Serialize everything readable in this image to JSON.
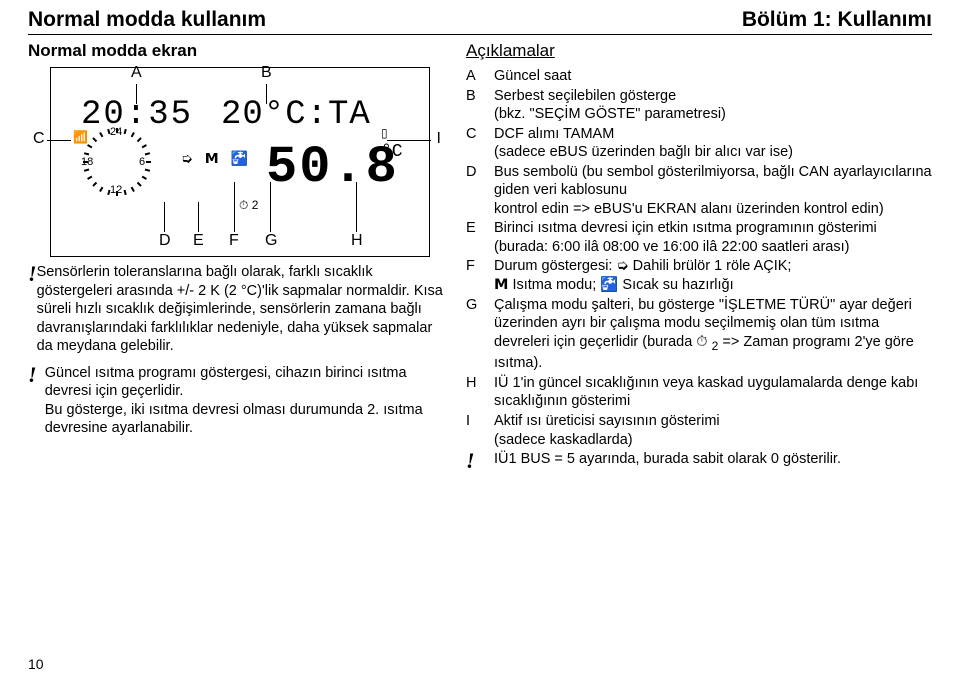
{
  "header": {
    "left": "Normal modda kullanım",
    "right": "Bölüm 1: Kullanımı"
  },
  "subheader": "Normal modda ekran",
  "display": {
    "labels": {
      "A": "A",
      "B": "B",
      "C": "C",
      "D": "D",
      "E": "E",
      "F": "F",
      "G": "G",
      "H": "H",
      "I": "I"
    },
    "time_text": "20:35",
    "temp_text": "20°C:TA",
    "big_value": "50.8",
    "clock_numbers": {
      "n24": "24",
      "n6": "6",
      "n12": "12",
      "n18": "18"
    },
    "small_c": "°C",
    "timer_suffix": "2"
  },
  "notes": {
    "n1": "Sensörlerin toleranslarına bağlı olarak, farklı sıcaklık göstergeleri arasında +/- 2 K (2 °C)'lik sapmalar normaldir. Kısa süreli hızlı sıcaklık değişimlerinde, sensörlerin zamana bağlı davranışlarındaki farklılıklar nedeniyle, daha yüksek sapmalar da meydana gelebilir.",
    "n2a": "Güncel ısıtma programı göstergesi, cihazın birinci ısıtma devresi için geçerlidir.",
    "n2b": "Bu gösterge, iki ısıtma devresi olması durumunda 2. ısıtma devresine ayarlanabilir."
  },
  "ack": {
    "title": "Açıklamalar",
    "A": "Güncel saat",
    "B": "Serbest seçilebilen gösterge\n(bkz. \"SEÇİM GÖSTE\" parametresi)",
    "C": "DCF alımı TAMAM\n(sadece eBUS üzerinden bağlı bir alıcı var ise)",
    "D": "Bus sembolü (bu sembol gösterilmiyorsa, bağlı CAN ayarlayıcılarına giden veri kablosunu\nkontrol edin => eBUS'u EKRAN alanı üzerinden kontrol edin)",
    "E": "Birinci ısıtma devresi için etkin ısıtma programının gösterimi\n(burada: 6:00 ilâ 08:00 ve 16:00 ilâ 22:00 saatleri arası)",
    "F_prefix": "Durum göstergesi: ",
    "F_mid": " Dahili brülör 1 röle AÇIK;",
    "F_line2a": " Isıtma modu; ",
    "F_line2b": " Sıcak su hazırlığı",
    "G_a": "Çalışma modu şalteri, bu gösterge \"İŞLETME TÜRÜ\" ayar değeri üzerinden ayrı bir çalışma modu seçilmemiş olan tüm ısıtma devreleri için geçerlidir (burada ",
    "G_b": " => Zaman programı 2'ye göre ısıtma).",
    "G_timer": "2",
    "H": "IÜ 1'in güncel sıcaklığının veya kaskad uygulamalarda denge kabı sıcaklığının gösterimi",
    "I": "Aktif ısı üreticisi sayısının gösterimi\n(sadece kaskadlarda)",
    "bang": "IÜ1 BUS = 5 ayarında, burada sabit olarak 0 gösterilir."
  },
  "pagenum": "10",
  "colors": {
    "text": "#000000",
    "bg": "#ffffff"
  }
}
